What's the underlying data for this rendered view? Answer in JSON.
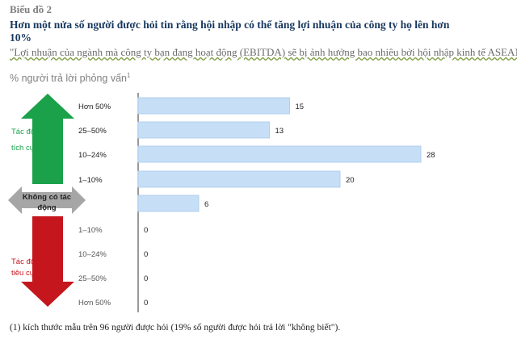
{
  "figure_label": "Biểu đồ 2",
  "title": "Hơn một nửa số người được hỏi tin rằng hội nhập có thể tăng lợi nhuận của công ty họ lên hơn 10%",
  "question": "\"Lợi nhuận của ngành mà công ty bạn đang hoạt động (EBITDA) sẽ bị ảnh hưởng bao nhiêu bởi hội nhập kinh tế ASEAN?\"",
  "unit_label": "% người trả lời phỏng vấn",
  "unit_footnote_mark": "1",
  "footnote": "(1) kích thước mẫu trên 96 người được hỏi (19% số người được hỏi  trả lời \"không biết\").",
  "side_labels": {
    "positive_line1": "Tác động",
    "positive_line2": "tích cực",
    "neutral_line1": "Không có tác",
    "neutral_line2": "động",
    "negative_line1": "Tác động",
    "negative_line2": "tiêu cực"
  },
  "colors": {
    "bar_fill": "#c6dff7",
    "bar_stroke": "#a9c9ea",
    "positive_arrow": "#1aa14a",
    "negative_arrow": "#c4161c",
    "neutral_arrow": "#a6a6a6",
    "positive_text": "#1aa14a",
    "negative_text": "#c4161c",
    "title_color": "#17375e"
  },
  "chart_data": {
    "type": "bar",
    "orientation": "horizontal",
    "categories": [
      "Hơn 50%",
      "25–50%",
      "10–24%",
      "1–10%",
      "",
      "1–10%",
      "10–24%",
      "25–50%",
      "Hơn 50%"
    ],
    "values": [
      15,
      13,
      28,
      20,
      6,
      0,
      0,
      0,
      0
    ],
    "groups": [
      "positive",
      "positive",
      "positive",
      "positive",
      "neutral",
      "negative",
      "negative",
      "negative",
      "negative"
    ],
    "title": "Hơn một nửa số người được hỏi tin rằng hội nhập có thể tăng lợi nhuận của công ty họ lên hơn 10%",
    "xlabel": "",
    "ylabel": "",
    "xlim": [
      0,
      30
    ],
    "grid": false,
    "legend": "none"
  }
}
